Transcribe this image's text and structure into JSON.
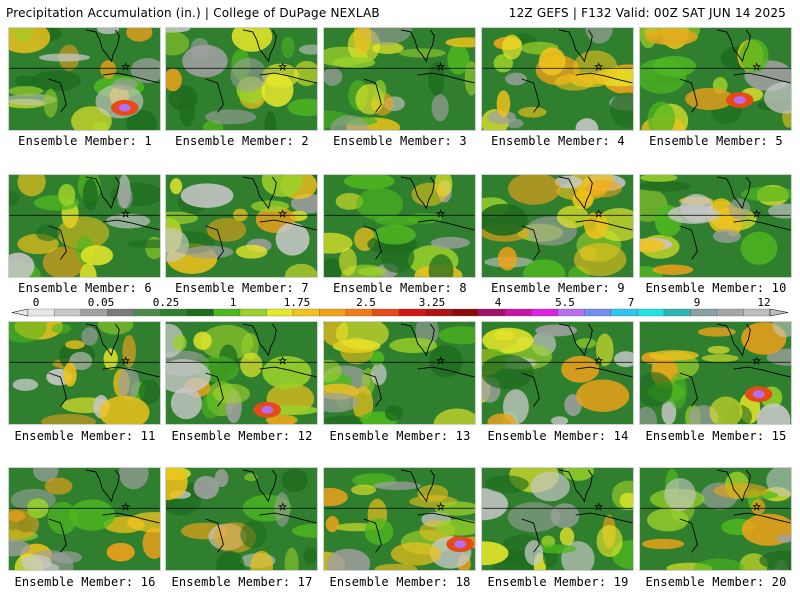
{
  "header": {
    "title": "Precipitation Accumulation (in.) | College of DuPage NEXLAB",
    "run_info": "12Z GEFS | F132 Valid: 00Z SAT JUN 14 2025"
  },
  "legend": {
    "ticks": [
      "0",
      "0.05",
      "0.25",
      "1",
      "1.75",
      "2.5",
      "3.25",
      "4",
      "5.5",
      "7",
      "9",
      "12"
    ],
    "colors": [
      "#e6e6e6",
      "#c8c8c8",
      "#a0a0a0",
      "#7a7a7a",
      "#4d8a4d",
      "#2f7f2f",
      "#1e6b1e",
      "#4fb81f",
      "#9bd12a",
      "#e8e82a",
      "#f0c21c",
      "#f2a21a",
      "#ef7d17",
      "#e64a17",
      "#d61414",
      "#b40f0f",
      "#8c0a0a",
      "#a0106a",
      "#c814a8",
      "#e11de6",
      "#b66ef0",
      "#6f8ef0",
      "#2fc6f0",
      "#22e3e3",
      "#2bb7b7",
      "#8ba0a0",
      "#a6a6a6",
      "#bdbdbd"
    ]
  },
  "members": [
    {
      "label": "Ensemble Member: 1"
    },
    {
      "label": "Ensemble Member: 2"
    },
    {
      "label": "Ensemble Member: 3"
    },
    {
      "label": "Ensemble Member: 4"
    },
    {
      "label": "Ensemble Member: 5"
    },
    {
      "label": "Ensemble Member: 6"
    },
    {
      "label": "Ensemble Member: 7"
    },
    {
      "label": "Ensemble Member: 8"
    },
    {
      "label": "Ensemble Member: 9"
    },
    {
      "label": "Ensemble Member: 10"
    },
    {
      "label": "Ensemble Member: 11"
    },
    {
      "label": "Ensemble Member: 12"
    },
    {
      "label": "Ensemble Member: 13"
    },
    {
      "label": "Ensemble Member: 14"
    },
    {
      "label": "Ensemble Member: 15"
    },
    {
      "label": "Ensemble Member: 16"
    },
    {
      "label": "Ensemble Member: 17"
    },
    {
      "label": "Ensemble Member: 18"
    },
    {
      "label": "Ensemble Member: 19"
    },
    {
      "label": "Ensemble Member: 20"
    }
  ]
}
